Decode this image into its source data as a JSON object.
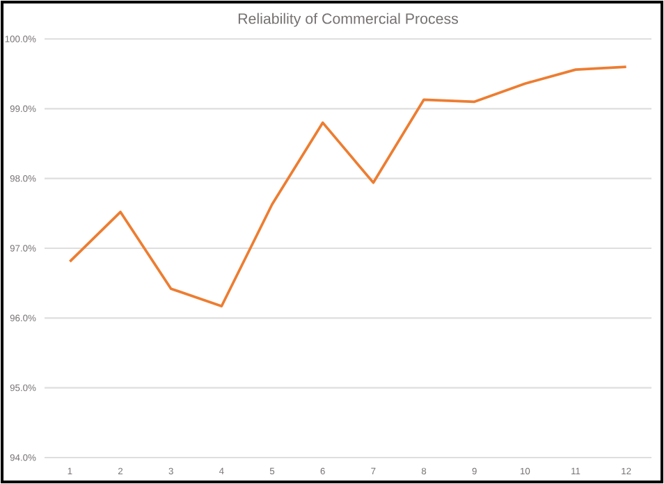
{
  "chart_data": {
    "type": "line",
    "title": "Reliability of Commercial Process",
    "categories": [
      "1",
      "2",
      "3",
      "4",
      "5",
      "6",
      "7",
      "8",
      "9",
      "10",
      "11",
      "12"
    ],
    "series": [
      {
        "color": "#ed7d31",
        "values": [
          96.81,
          97.52,
          96.42,
          96.17,
          97.63,
          98.8,
          97.94,
          99.13,
          99.1,
          99.36,
          99.56,
          99.6
        ]
      }
    ],
    "ylim": [
      94,
      100
    ],
    "yticks": [
      {
        "value": 94,
        "label": "94.0%"
      },
      {
        "value": 95,
        "label": "95.0%"
      },
      {
        "value": 96,
        "label": "96.0%"
      },
      {
        "value": 97,
        "label": "97.0%"
      },
      {
        "value": 98,
        "label": "98.0%"
      },
      {
        "value": 99,
        "label": "99.0%"
      },
      {
        "value": 100,
        "label": "100.0%"
      }
    ],
    "grid": "y",
    "marker": "none",
    "line_style": "solid"
  }
}
